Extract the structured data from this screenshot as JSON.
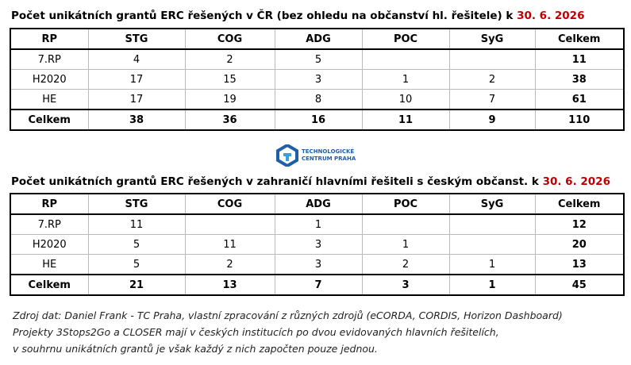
{
  "title1": "Počet unikátních grantů ERC řešených v ČR (bez ohledu na občanství hl. řešitele) k ",
  "date1": "30. 6. 2026",
  "table1": {
    "header": [
      "RP",
      "STG",
      "COG",
      "ADG",
      "POC",
      "SyG",
      "Celkem"
    ],
    "rows": [
      [
        "7.RP",
        4,
        2,
        5,
        null,
        null,
        11
      ],
      [
        "H2020",
        17,
        15,
        3,
        1,
        2,
        38
      ],
      [
        "HE",
        17,
        19,
        8,
        10,
        7,
        61
      ],
      [
        "Celkem",
        38,
        36,
        16,
        11,
        9,
        110
      ]
    ]
  },
  "logo": [
    "TECHNOLOGICKÉ",
    "CENTRUM PRAHA"
  ],
  "title2": "Počet unikátních grantů ERC řešených v zahraničí hlavními řešiteli s českým občanst. k ",
  "date2": "30. 6. 2026",
  "table2": {
    "header": [
      "RP",
      "STG",
      "COG",
      "ADG",
      "POC",
      "SyG",
      "Celkem"
    ],
    "rows": [
      [
        "7.RP",
        11,
        null,
        1,
        null,
        null,
        12
      ],
      [
        "H2020",
        5,
        11,
        3,
        1,
        null,
        20
      ],
      [
        "HE",
        5,
        2,
        3,
        2,
        1,
        13
      ],
      [
        "Celkem",
        21,
        13,
        7,
        3,
        1,
        45
      ]
    ]
  },
  "notes": [
    "Zdroj dat: Daniel Frank - TC Praha, vlastní zpracování z různých zdrojů (eCORDA, CORDIS, Horizon Dashboard)",
    "Projekty 3Stops2Go a CLOSER mají v českých institucích po dvou evidovaných hlavních řešitelích,",
    "v souhrnu unikátních grantů je však každý z nich započten pouze jednou."
  ]
}
